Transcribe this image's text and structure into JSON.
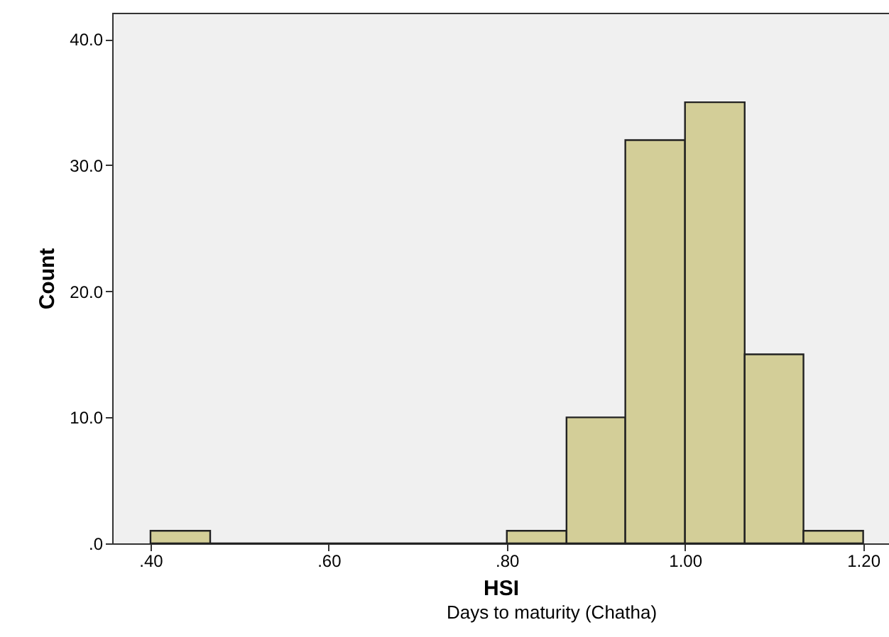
{
  "chart_data": {
    "type": "histogram",
    "xlabel": "HSI",
    "ylabel": "Count",
    "annotations": [
      "Days to maturity (Chatha)"
    ],
    "bins": [
      0.4,
      0.467,
      0.8,
      0.867,
      0.933,
      1.0,
      1.067,
      1.133,
      1.2
    ],
    "values": [
      1,
      0,
      1,
      10,
      32,
      35,
      15,
      1
    ],
    "color": "#d3ce98",
    "xlim": [
      0.357,
      1.229
    ],
    "xticks": [
      {
        "value": 0.4,
        "label": ".40"
      },
      {
        "value": 0.6,
        "label": ".60"
      },
      {
        "value": 0.8,
        "label": ".80"
      },
      {
        "value": 1.0,
        "label": "1.00"
      },
      {
        "value": 1.2,
        "label": "1.20"
      }
    ],
    "ylim": [
      0,
      42.1
    ],
    "yticks": [
      {
        "value": 0,
        "label": ".0"
      },
      {
        "value": 10,
        "label": "10.0"
      },
      {
        "value": 20,
        "label": "20.0"
      },
      {
        "value": 30,
        "label": "30.0"
      },
      {
        "value": 40,
        "label": "40.0"
      }
    ],
    "grid": false
  }
}
